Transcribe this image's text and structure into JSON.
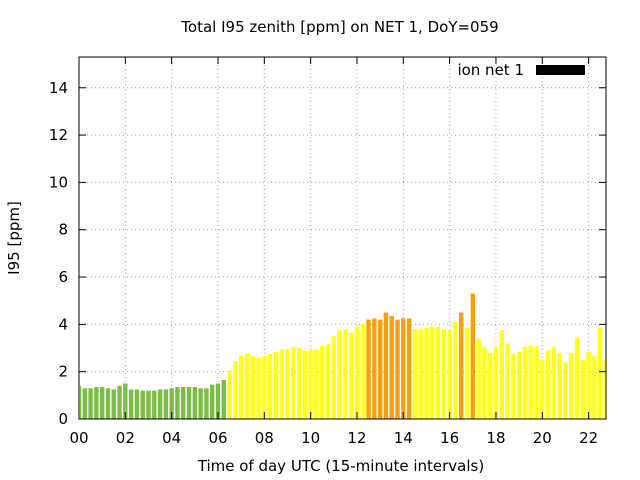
{
  "chart_data": {
    "type": "bar",
    "title": "Total I95 zenith [ppm] on NET 1, DoY=059",
    "xlabel": "Time of day UTC (15-minute intervals)",
    "ylabel": "I95 [ppm]",
    "xlim": [
      0,
      22.75
    ],
    "ylim": [
      0,
      15.3
    ],
    "xticks": [
      0,
      2,
      4,
      6,
      8,
      10,
      12,
      14,
      16,
      18,
      20,
      22
    ],
    "xtick_labels": [
      "00",
      "02",
      "04",
      "06",
      "08",
      "10",
      "12",
      "14",
      "16",
      "18",
      "20",
      "22"
    ],
    "yticks": [
      0,
      2,
      4,
      6,
      8,
      10,
      12,
      14
    ],
    "ytick_labels": [
      "0",
      "2",
      "4",
      "6",
      "8",
      "10",
      "12",
      "14"
    ],
    "grid": true,
    "legend": {
      "position": "top-right",
      "label": "ion net 1",
      "color": "#000000"
    },
    "colors": {
      "low": "#7cbd48",
      "medium": "#ffff1a",
      "high": "#f5a00f"
    },
    "interval_hours": 0.25,
    "bar_width_hours": 0.19,
    "series": [
      {
        "x": [
          0,
          0.25,
          0.5,
          0.75,
          1,
          1.25,
          1.5,
          1.75,
          2,
          2.25,
          2.5,
          2.75,
          3,
          3.25,
          3.5,
          3.75,
          4,
          4.25,
          4.5,
          4.75,
          5,
          5.25,
          5.5,
          5.75,
          6,
          6.25,
          6.5,
          6.75,
          7,
          7.25,
          7.5,
          7.75,
          8,
          8.25,
          8.5,
          8.75,
          9,
          9.25,
          9.5,
          9.75,
          10,
          10.25,
          10.5,
          10.75,
          11,
          11.25,
          11.5,
          11.75,
          12,
          12.25,
          12.5,
          12.75,
          13,
          13.25,
          13.5,
          13.75,
          14,
          14.25,
          14.5,
          14.75,
          15,
          15.25,
          15.5,
          15.75,
          16,
          16.25,
          16.5,
          16.75,
          17,
          17.25,
          17.5,
          17.75,
          18,
          18.25,
          18.5,
          18.75,
          19,
          19.25,
          19.5,
          19.75,
          20,
          20.25,
          20.5,
          20.75,
          21,
          21.25,
          21.5,
          21.75,
          22,
          22.25,
          22.5,
          22.75
        ],
        "values": [
          1.4,
          1.3,
          1.3,
          1.35,
          1.35,
          1.3,
          1.25,
          1.4,
          1.5,
          1.25,
          1.25,
          1.2,
          1.2,
          1.2,
          1.25,
          1.25,
          1.3,
          1.35,
          1.35,
          1.35,
          1.35,
          1.3,
          1.3,
          1.45,
          1.5,
          1.65,
          2.05,
          2.45,
          2.7,
          2.75,
          2.65,
          2.6,
          2.65,
          2.75,
          2.85,
          2.95,
          2.95,
          3.05,
          3.0,
          2.9,
          2.9,
          2.95,
          3.1,
          3.15,
          3.5,
          3.75,
          3.8,
          3.65,
          3.9,
          4.0,
          4.2,
          4.25,
          4.2,
          4.5,
          4.35,
          4.2,
          4.25,
          4.25,
          3.8,
          3.8,
          3.85,
          3.9,
          3.9,
          3.8,
          3.75,
          4.1,
          4.5,
          3.85,
          5.3,
          3.4,
          3.05,
          2.8,
          3.05,
          3.75,
          3.2,
          2.75,
          2.85,
          3.05,
          3.1,
          3.05,
          2.5,
          2.9,
          3.05,
          2.8,
          2.4,
          2.8,
          3.45,
          2.5,
          2.85,
          2.65,
          3.85,
          2.5
        ],
        "levels": [
          "low",
          "low",
          "low",
          "low",
          "low",
          "low",
          "low",
          "low",
          "low",
          "low",
          "low",
          "low",
          "low",
          "low",
          "low",
          "low",
          "low",
          "low",
          "low",
          "low",
          "low",
          "low",
          "low",
          "low",
          "low",
          "low",
          "medium",
          "medium",
          "medium",
          "medium",
          "medium",
          "medium",
          "medium",
          "medium",
          "medium",
          "medium",
          "medium",
          "medium",
          "medium",
          "medium",
          "medium",
          "medium",
          "medium",
          "medium",
          "medium",
          "medium",
          "medium",
          "medium",
          "medium",
          "medium",
          "high",
          "high",
          "high",
          "high",
          "high",
          "high",
          "high",
          "high",
          "medium",
          "medium",
          "medium",
          "medium",
          "medium",
          "medium",
          "medium",
          "medium",
          "high",
          "medium",
          "high",
          "medium",
          "medium",
          "medium",
          "medium",
          "medium",
          "medium",
          "medium",
          "medium",
          "medium",
          "medium",
          "medium",
          "medium",
          "medium",
          "medium",
          "medium",
          "medium",
          "medium",
          "medium",
          "medium",
          "medium",
          "medium",
          "medium",
          "medium"
        ]
      }
    ]
  }
}
